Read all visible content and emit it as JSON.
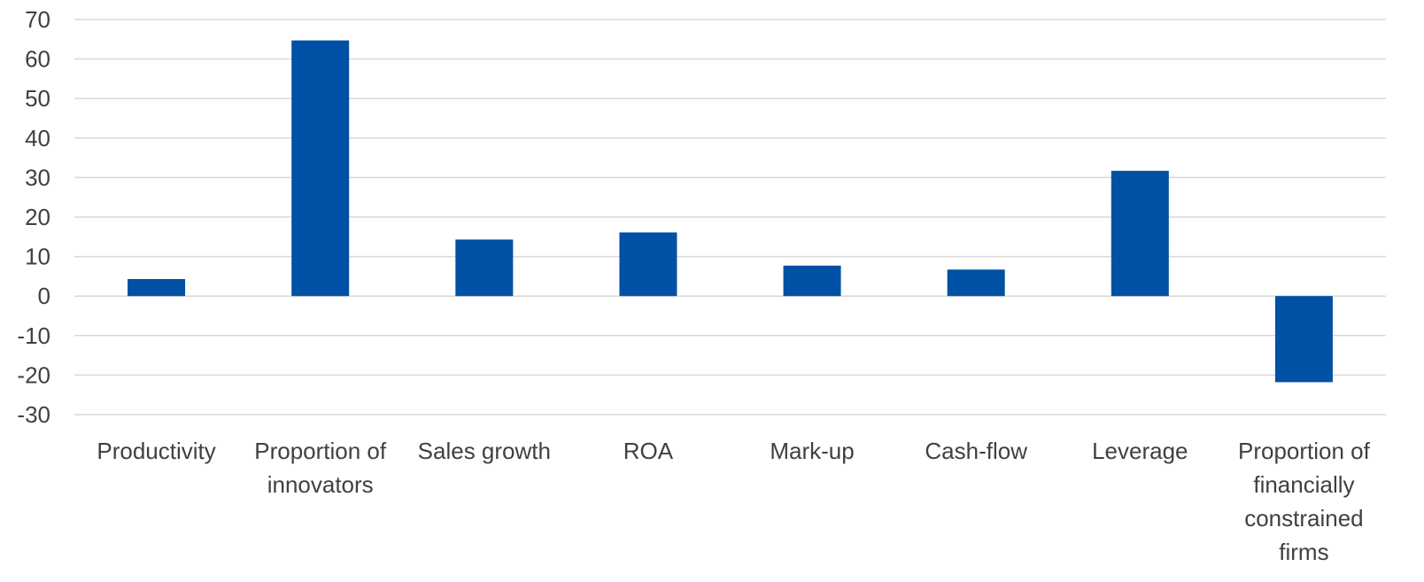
{
  "chart_data": {
    "type": "bar",
    "title": "",
    "xlabel": "",
    "ylabel": "",
    "categories": [
      [
        "Productivity"
      ],
      [
        "Proportion of",
        "innovators"
      ],
      [
        "Sales growth"
      ],
      [
        "ROA"
      ],
      [
        "Mark-up"
      ],
      [
        "Cash-flow"
      ],
      [
        "Leverage"
      ],
      [
        "Proportion of",
        "financially",
        "constrained",
        "firms"
      ]
    ],
    "values": [
      4.3,
      64.7,
      14.3,
      16.1,
      7.7,
      6.7,
      31.7,
      -21.8
    ],
    "ylim": [
      -30,
      70
    ],
    "yticks": [
      "70",
      "60",
      "50",
      "40",
      "30",
      "20",
      "10",
      "0",
      "-10",
      "-20",
      "-30"
    ],
    "ytick_values": [
      70,
      60,
      50,
      40,
      30,
      20,
      10,
      0,
      -10,
      -20,
      -30
    ],
    "grid": true,
    "legend": "none",
    "bar_color": "#0051a5",
    "grid_color": "#d9d9d9",
    "text_color": "#404040"
  }
}
